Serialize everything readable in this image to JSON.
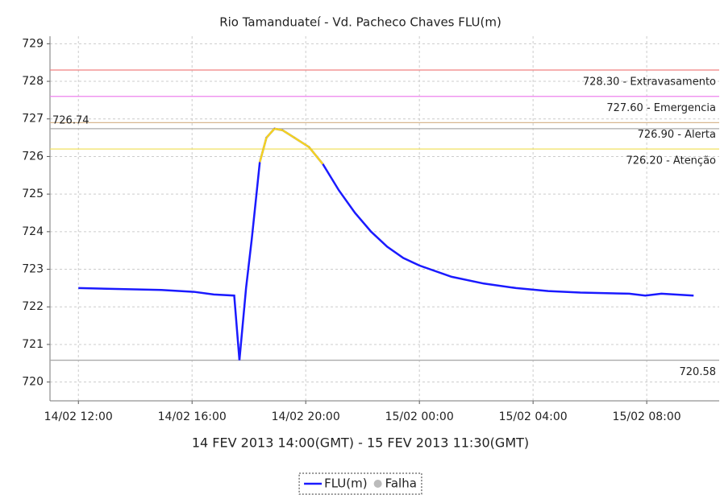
{
  "chart_data": {
    "type": "line",
    "title": "Rio Tamanduateí - Vd. Pacheco Chaves FLU(m)",
    "x_label": "14 FEV 2013 14:00(GMT) - 15 FEV 2013 11:30(GMT)",
    "x": [
      "14/02 12:00",
      "14/02 14:55",
      "14/02 16:04",
      "14/02 16:46",
      "14/02 17:29",
      "14/02 17:40",
      "14/02 17:54",
      "14/02 18:06",
      "14/02 18:16",
      "14/02 18:23",
      "14/02 18:37",
      "14/02 18:54",
      "14/02 19:11",
      "14/02 19:36",
      "14/02 20:07",
      "14/02 20:36",
      "14/02 21:10",
      "14/02 21:44",
      "14/02 22:18",
      "14/02 22:52",
      "14/02 23:26",
      "15/02 00:00",
      "15/02 01:08",
      "15/02 02:16",
      "15/02 03:24",
      "15/02 04:32",
      "15/02 05:40",
      "15/02 07:23",
      "15/02 07:57",
      "15/02 08:31",
      "15/02 09:39"
    ],
    "series": [
      {
        "name": "FLU(m)",
        "color": "#1a1aff",
        "above_color": "#f5d320",
        "values": [
          722.5,
          722.45,
          722.4,
          722.33,
          722.3,
          720.58,
          722.5,
          723.8,
          725.0,
          725.85,
          726.5,
          726.74,
          726.7,
          726.5,
          726.25,
          725.8,
          725.1,
          724.5,
          724.0,
          723.6,
          723.3,
          723.1,
          722.8,
          722.62,
          722.5,
          722.42,
          722.38,
          722.35,
          722.3,
          722.35,
          722.3
        ]
      }
    ],
    "highlight_threshold": 726.2,
    "legend_extra": {
      "name": "Falha",
      "color": "#bbbbbb"
    },
    "reference_lines": [
      {
        "value": 728.3,
        "label": "728.30 - Extravasamento",
        "color": "#f08080",
        "label_position": "below-right"
      },
      {
        "value": 727.6,
        "label": "727.60 - Emergencia",
        "color": "#ee82ee",
        "label_position": "below-right"
      },
      {
        "value": 726.9,
        "label": "726.90 - Alerta",
        "color": "#d8b890",
        "label_position": "below-right"
      },
      {
        "value": 726.74,
        "label": "726.74",
        "color": "#aaaaaa",
        "label_position": "above-left"
      },
      {
        "value": 726.2,
        "label": "726.20 - Atenção",
        "color": "#f0e060",
        "label_position": "below-right"
      },
      {
        "value": 720.58,
        "label": "720.58",
        "color": "#aaaaaa",
        "label_position": "below-right"
      }
    ],
    "xlim": [
      "14/02 11:00",
      "15/02 10:33"
    ],
    "xticks": [
      "14/02 12:00",
      "14/02 16:00",
      "14/02 20:00",
      "15/02 00:00",
      "15/02 04:00",
      "15/02 08:00"
    ],
    "ylim": [
      719.5,
      729.2
    ],
    "yticks": [
      720,
      721,
      722,
      723,
      724,
      725,
      726,
      727,
      728,
      729
    ],
    "grid": true,
    "legend": "bottom"
  }
}
